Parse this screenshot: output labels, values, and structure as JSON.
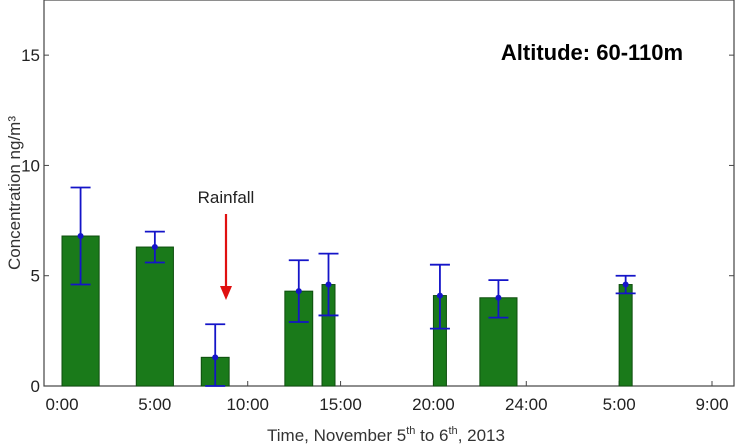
{
  "chart_data": {
    "type": "bar",
    "title": "Altitude: 60-110m",
    "ylabel": "Concentration ng/m³",
    "xlabel": {
      "prefix": "Time, November 5",
      "sup1": "th",
      "mid": " to 6",
      "sup2": "th",
      "suffix": ", 2013"
    },
    "x_ticks": [
      "0:00",
      "5:00",
      "10:00",
      "15:00",
      "20:00",
      "24:00",
      "5:00",
      "9:00"
    ],
    "y_ticks": [
      "0",
      "5",
      "10",
      "15"
    ],
    "ylim": [
      0,
      17.5
    ],
    "grid": false,
    "bar_color": "#1a7a1a",
    "error_color": "#1414c8",
    "bars": [
      {
        "start": 0.0,
        "end": 2.0,
        "value": 6.8,
        "err_low": 4.6,
        "err_high": 9.0
      },
      {
        "start": 4.0,
        "end": 6.0,
        "value": 6.3,
        "err_low": 5.6,
        "err_high": 7.0
      },
      {
        "start": 7.5,
        "end": 9.0,
        "value": 1.3,
        "err_low": 0.0,
        "err_high": 2.8
      },
      {
        "start": 12.0,
        "end": 13.5,
        "value": 4.3,
        "err_low": 2.9,
        "err_high": 5.7
      },
      {
        "start": 14.0,
        "end": 14.7,
        "value": 4.6,
        "err_low": 3.2,
        "err_high": 6.0
      },
      {
        "start": 20.0,
        "end": 20.7,
        "value": 4.1,
        "err_low": 2.6,
        "err_high": 5.5
      },
      {
        "start": 22.5,
        "end": 24.5,
        "value": 4.0,
        "err_low": 3.1,
        "err_high": 4.8
      },
      {
        "start": 30.0,
        "end": 30.7,
        "value": 4.6,
        "err_low": 4.2,
        "err_high": 5.0
      }
    ],
    "annotation": {
      "text": "Rainfall",
      "arrow_color": "#e01010"
    }
  }
}
